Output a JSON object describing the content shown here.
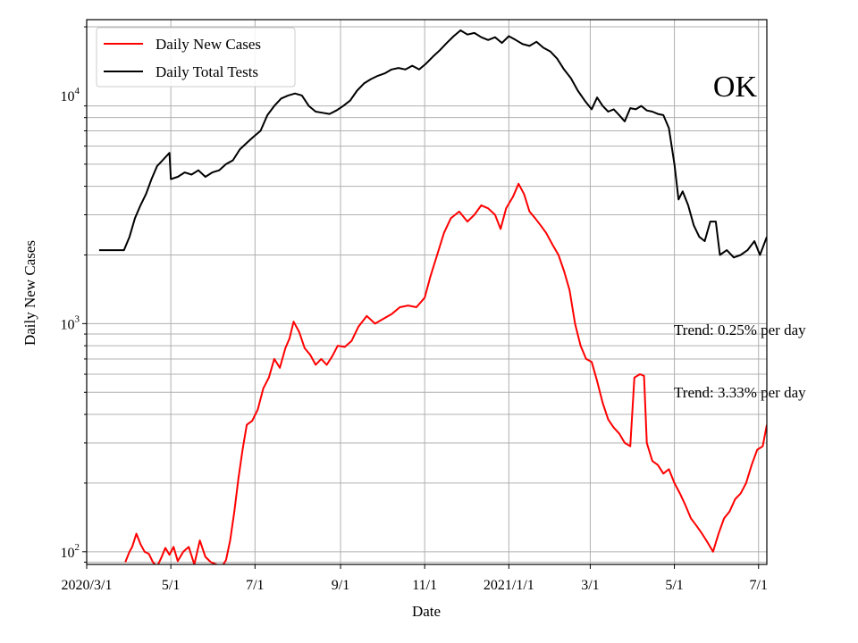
{
  "chart_data": {
    "type": "line",
    "xlabel": "Date",
    "ylabel": "Daily New Cases",
    "yscale": "log",
    "ylim": [
      88,
      21500
    ],
    "xlim": [
      "2020-03-01",
      "2021-07-07"
    ],
    "grid": true,
    "legend_position": "top-left",
    "x_ticks": [
      {
        "date": "2020-03-01",
        "label": "2020/3/1"
      },
      {
        "date": "2020-05-01",
        "label": "5/1"
      },
      {
        "date": "2020-07-01",
        "label": "7/1"
      },
      {
        "date": "2020-09-01",
        "label": "9/1"
      },
      {
        "date": "2020-11-01",
        "label": "11/1"
      },
      {
        "date": "2021-01-01",
        "label": "2021/1/1"
      },
      {
        "date": "2021-03-01",
        "label": "3/1"
      },
      {
        "date": "2021-05-01",
        "label": "5/1"
      },
      {
        "date": "2021-07-01",
        "label": "7/1"
      }
    ],
    "y_major_ticks": [
      {
        "value": 100,
        "base": "10",
        "exp": "2"
      },
      {
        "value": 1000,
        "base": "10",
        "exp": "3"
      },
      {
        "value": 10000,
        "base": "10",
        "exp": "4"
      }
    ],
    "series": [
      {
        "name": "Daily New Cases",
        "color": "#ff0000",
        "points": [
          [
            "2020-03-29",
            90
          ],
          [
            "2020-04-01",
            100
          ],
          [
            "2020-04-03",
            105
          ],
          [
            "2020-04-06",
            120
          ],
          [
            "2020-04-09",
            108
          ],
          [
            "2020-04-12",
            100
          ],
          [
            "2020-04-15",
            98
          ],
          [
            "2020-04-18",
            90
          ],
          [
            "2020-04-21",
            86
          ],
          [
            "2020-04-24",
            94
          ],
          [
            "2020-04-27",
            104
          ],
          [
            "2020-04-30",
            97
          ],
          [
            "2020-05-03",
            105
          ],
          [
            "2020-05-06",
            91
          ],
          [
            "2020-05-10",
            100
          ],
          [
            "2020-05-14",
            105
          ],
          [
            "2020-05-18",
            88
          ],
          [
            "2020-05-22",
            112
          ],
          [
            "2020-05-26",
            95
          ],
          [
            "2020-05-30",
            90
          ],
          [
            "2020-06-03",
            88
          ],
          [
            "2020-06-07",
            86
          ],
          [
            "2020-06-10",
            92
          ],
          [
            "2020-06-13",
            112
          ],
          [
            "2020-06-16",
            150
          ],
          [
            "2020-06-19",
            210
          ],
          [
            "2020-06-22",
            280
          ],
          [
            "2020-06-25",
            360
          ],
          [
            "2020-06-29",
            375
          ],
          [
            "2020-07-03",
            420
          ],
          [
            "2020-07-07",
            520
          ],
          [
            "2020-07-11",
            580
          ],
          [
            "2020-07-15",
            700
          ],
          [
            "2020-07-19",
            640
          ],
          [
            "2020-07-23",
            780
          ],
          [
            "2020-07-26",
            860
          ],
          [
            "2020-07-29",
            1020
          ],
          [
            "2020-08-02",
            920
          ],
          [
            "2020-08-06",
            780
          ],
          [
            "2020-08-10",
            730
          ],
          [
            "2020-08-14",
            660
          ],
          [
            "2020-08-18",
            700
          ],
          [
            "2020-08-22",
            660
          ],
          [
            "2020-08-26",
            720
          ],
          [
            "2020-08-30",
            800
          ],
          [
            "2020-09-04",
            790
          ],
          [
            "2020-09-09",
            840
          ],
          [
            "2020-09-14",
            970
          ],
          [
            "2020-09-20",
            1080
          ],
          [
            "2020-09-26",
            1000
          ],
          [
            "2020-10-02",
            1050
          ],
          [
            "2020-10-08",
            1100
          ],
          [
            "2020-10-14",
            1180
          ],
          [
            "2020-10-20",
            1200
          ],
          [
            "2020-10-26",
            1180
          ],
          [
            "2020-11-01",
            1300
          ],
          [
            "2020-11-05",
            1600
          ],
          [
            "2020-11-10",
            2000
          ],
          [
            "2020-11-15",
            2500
          ],
          [
            "2020-11-20",
            2900
          ],
          [
            "2020-11-26",
            3100
          ],
          [
            "2020-12-02",
            2800
          ],
          [
            "2020-12-07",
            3000
          ],
          [
            "2020-12-12",
            3300
          ],
          [
            "2020-12-17",
            3200
          ],
          [
            "2020-12-22",
            3000
          ],
          [
            "2020-12-26",
            2600
          ],
          [
            "2020-12-30",
            3200
          ],
          [
            "2021-01-04",
            3600
          ],
          [
            "2021-01-08",
            4100
          ],
          [
            "2021-01-12",
            3700
          ],
          [
            "2021-01-16",
            3100
          ],
          [
            "2021-01-20",
            2900
          ],
          [
            "2021-01-24",
            2700
          ],
          [
            "2021-01-28",
            2500
          ],
          [
            "2021-02-02",
            2200
          ],
          [
            "2021-02-06",
            2000
          ],
          [
            "2021-02-10",
            1700
          ],
          [
            "2021-02-14",
            1400
          ],
          [
            "2021-02-18",
            1000
          ],
          [
            "2021-02-22",
            800
          ],
          [
            "2021-02-26",
            700
          ],
          [
            "2021-03-02",
            680
          ],
          [
            "2021-03-06",
            560
          ],
          [
            "2021-03-10",
            450
          ],
          [
            "2021-03-14",
            380
          ],
          [
            "2021-03-18",
            350
          ],
          [
            "2021-03-22",
            330
          ],
          [
            "2021-03-26",
            300
          ],
          [
            "2021-03-30",
            290
          ],
          [
            "2021-04-02",
            580
          ],
          [
            "2021-04-06",
            600
          ],
          [
            "2021-04-09",
            590
          ],
          [
            "2021-04-11",
            300
          ],
          [
            "2021-04-15",
            250
          ],
          [
            "2021-04-19",
            240
          ],
          [
            "2021-04-23",
            220
          ],
          [
            "2021-04-27",
            230
          ],
          [
            "2021-05-01",
            200
          ],
          [
            "2021-05-05",
            180
          ],
          [
            "2021-05-09",
            160
          ],
          [
            "2021-05-13",
            140
          ],
          [
            "2021-05-17",
            130
          ],
          [
            "2021-05-21",
            120
          ],
          [
            "2021-05-25",
            110
          ],
          [
            "2021-05-29",
            100
          ],
          [
            "2021-06-02",
            120
          ],
          [
            "2021-06-06",
            140
          ],
          [
            "2021-06-10",
            150
          ],
          [
            "2021-06-14",
            170
          ],
          [
            "2021-06-18",
            180
          ],
          [
            "2021-06-22",
            200
          ],
          [
            "2021-06-26",
            240
          ],
          [
            "2021-06-30",
            280
          ],
          [
            "2021-07-04",
            290
          ],
          [
            "2021-07-07",
            360
          ]
        ]
      },
      {
        "name": "Daily Total Tests",
        "color": "#000000",
        "points": [
          [
            "2020-03-10",
            2100
          ],
          [
            "2020-03-28",
            2100
          ],
          [
            "2020-04-01",
            2400
          ],
          [
            "2020-04-05",
            2900
          ],
          [
            "2020-04-09",
            3300
          ],
          [
            "2020-04-13",
            3700
          ],
          [
            "2020-04-17",
            4300
          ],
          [
            "2020-04-21",
            4900
          ],
          [
            "2020-04-25",
            5200
          ],
          [
            "2020-04-30",
            5600
          ],
          [
            "2020-05-01",
            4300
          ],
          [
            "2020-05-06",
            4400
          ],
          [
            "2020-05-11",
            4600
          ],
          [
            "2020-05-16",
            4500
          ],
          [
            "2020-05-21",
            4700
          ],
          [
            "2020-05-26",
            4400
          ],
          [
            "2020-05-31",
            4600
          ],
          [
            "2020-06-05",
            4700
          ],
          [
            "2020-06-10",
            5000
          ],
          [
            "2020-06-15",
            5200
          ],
          [
            "2020-06-20",
            5800
          ],
          [
            "2020-06-25",
            6200
          ],
          [
            "2020-06-30",
            6600
          ],
          [
            "2020-07-05",
            7000
          ],
          [
            "2020-07-10",
            8200
          ],
          [
            "2020-07-15",
            9000
          ],
          [
            "2020-07-20",
            9700
          ],
          [
            "2020-07-25",
            10000
          ],
          [
            "2020-07-30",
            10200
          ],
          [
            "2020-08-04",
            10000
          ],
          [
            "2020-08-09",
            9000
          ],
          [
            "2020-08-14",
            8500
          ],
          [
            "2020-08-19",
            8400
          ],
          [
            "2020-08-24",
            8300
          ],
          [
            "2020-08-29",
            8600
          ],
          [
            "2020-09-03",
            9000
          ],
          [
            "2020-09-08",
            9500
          ],
          [
            "2020-09-13",
            10500
          ],
          [
            "2020-09-18",
            11300
          ],
          [
            "2020-09-23",
            11800
          ],
          [
            "2020-09-28",
            12200
          ],
          [
            "2020-10-03",
            12500
          ],
          [
            "2020-10-08",
            13000
          ],
          [
            "2020-10-13",
            13200
          ],
          [
            "2020-10-18",
            13000
          ],
          [
            "2020-10-23",
            13500
          ],
          [
            "2020-10-28",
            13000
          ],
          [
            "2020-11-02",
            13800
          ],
          [
            "2020-11-07",
            14800
          ],
          [
            "2020-11-12",
            15800
          ],
          [
            "2020-11-17",
            17000
          ],
          [
            "2020-11-22",
            18200
          ],
          [
            "2020-11-27",
            19300
          ],
          [
            "2020-12-02",
            18500
          ],
          [
            "2020-12-07",
            18800
          ],
          [
            "2020-12-12",
            18000
          ],
          [
            "2020-12-17",
            17500
          ],
          [
            "2020-12-22",
            18000
          ],
          [
            "2020-12-27",
            17000
          ],
          [
            "2021-01-01",
            18200
          ],
          [
            "2021-01-06",
            17500
          ],
          [
            "2021-01-11",
            16800
          ],
          [
            "2021-01-16",
            16500
          ],
          [
            "2021-01-21",
            17200
          ],
          [
            "2021-01-26",
            16200
          ],
          [
            "2021-01-31",
            15600
          ],
          [
            "2021-02-05",
            14500
          ],
          [
            "2021-02-10",
            13000
          ],
          [
            "2021-02-15",
            11900
          ],
          [
            "2021-02-20",
            10500
          ],
          [
            "2021-02-25",
            9500
          ],
          [
            "2021-03-02",
            8700
          ],
          [
            "2021-03-06",
            9800
          ],
          [
            "2021-03-10",
            9000
          ],
          [
            "2021-03-14",
            8500
          ],
          [
            "2021-03-18",
            8700
          ],
          [
            "2021-03-22",
            8200
          ],
          [
            "2021-03-26",
            7700
          ],
          [
            "2021-03-30",
            8800
          ],
          [
            "2021-04-03",
            8700
          ],
          [
            "2021-04-07",
            9000
          ],
          [
            "2021-04-11",
            8600
          ],
          [
            "2021-04-15",
            8500
          ],
          [
            "2021-04-19",
            8300
          ],
          [
            "2021-04-23",
            8200
          ],
          [
            "2021-04-27",
            7200
          ],
          [
            "2021-05-01",
            5000
          ],
          [
            "2021-05-04",
            3500
          ],
          [
            "2021-05-07",
            3800
          ],
          [
            "2021-05-11",
            3300
          ],
          [
            "2021-05-15",
            2700
          ],
          [
            "2021-05-19",
            2400
          ],
          [
            "2021-05-23",
            2300
          ],
          [
            "2021-05-27",
            2800
          ],
          [
            "2021-05-31",
            2800
          ],
          [
            "2021-06-03",
            2000
          ],
          [
            "2021-06-08",
            2100
          ],
          [
            "2021-06-13",
            1950
          ],
          [
            "2021-06-18",
            2000
          ],
          [
            "2021-06-23",
            2100
          ],
          [
            "2021-06-28",
            2300
          ],
          [
            "2021-07-02",
            2000
          ],
          [
            "2021-07-07",
            2400
          ]
        ]
      }
    ],
    "annotations": [
      {
        "text": "Trend: 0.25% per day"
      },
      {
        "text": "Trend: 3.33% per day"
      }
    ],
    "state_label": "OK"
  }
}
